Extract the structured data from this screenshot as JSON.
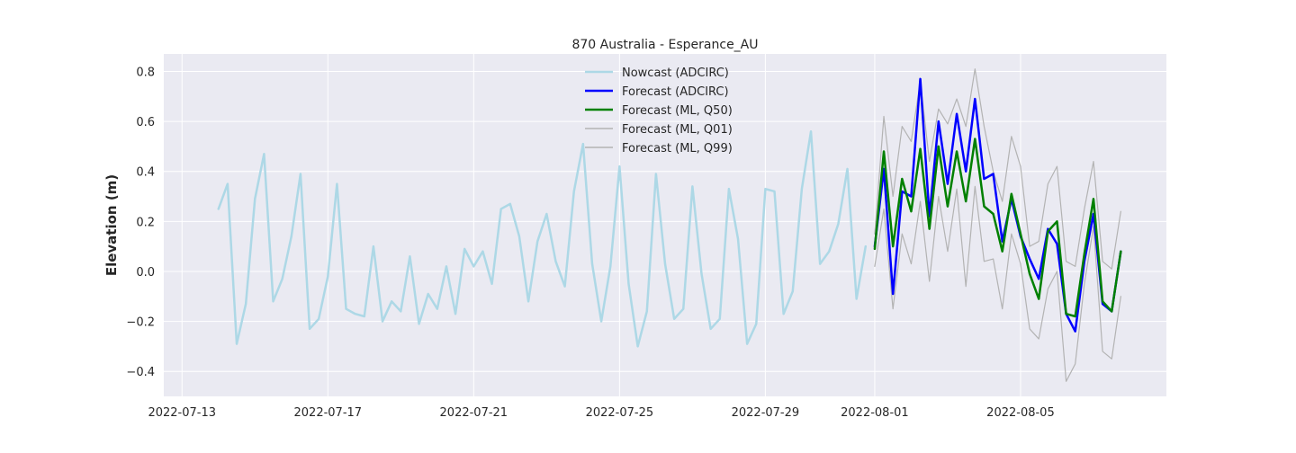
{
  "chart_data": {
    "type": "line",
    "title": "870 Australia - Esperance_AU",
    "xlabel": "",
    "ylabel": "Elevation (m)",
    "x_axis_type": "date",
    "xlim": [
      "2022-07-12 12:00",
      "2022-08-09 00:00"
    ],
    "ylim": [
      -0.5,
      0.87
    ],
    "grid": true,
    "legend_position": "top-center",
    "x_ticks": [
      "2022-07-13",
      "2022-07-17",
      "2022-07-21",
      "2022-07-25",
      "2022-07-29",
      "2022-08-01",
      "2022-08-05"
    ],
    "y_ticks": [
      -0.4,
      -0.2,
      0.0,
      0.2,
      0.4,
      0.6,
      0.8
    ],
    "y_tick_labels": [
      "−0.4",
      "−0.2",
      "0.0",
      "0.2",
      "0.4",
      "0.6",
      "0.8"
    ],
    "series": [
      {
        "name": "Nowcast (ADCIRC)",
        "color": "#add8e6",
        "width": 2.5,
        "x": [
          "2022-07-14 00:00",
          "2022-07-14 06:00",
          "2022-07-14 12:00",
          "2022-07-14 18:00",
          "2022-07-15 00:00",
          "2022-07-15 06:00",
          "2022-07-15 12:00",
          "2022-07-15 18:00",
          "2022-07-16 00:00",
          "2022-07-16 06:00",
          "2022-07-16 12:00",
          "2022-07-16 18:00",
          "2022-07-17 00:00",
          "2022-07-17 06:00",
          "2022-07-17 12:00",
          "2022-07-17 18:00",
          "2022-07-18 00:00",
          "2022-07-18 06:00",
          "2022-07-18 12:00",
          "2022-07-18 18:00",
          "2022-07-19 00:00",
          "2022-07-19 06:00",
          "2022-07-19 12:00",
          "2022-07-19 18:00",
          "2022-07-20 00:00",
          "2022-07-20 06:00",
          "2022-07-20 12:00",
          "2022-07-20 18:00",
          "2022-07-21 00:00",
          "2022-07-21 06:00",
          "2022-07-21 12:00",
          "2022-07-21 18:00",
          "2022-07-22 00:00",
          "2022-07-22 06:00",
          "2022-07-22 12:00",
          "2022-07-22 18:00",
          "2022-07-23 00:00",
          "2022-07-23 06:00",
          "2022-07-23 12:00",
          "2022-07-23 18:00",
          "2022-07-24 00:00",
          "2022-07-24 06:00",
          "2022-07-24 12:00",
          "2022-07-24 18:00",
          "2022-07-25 00:00",
          "2022-07-25 06:00",
          "2022-07-25 12:00",
          "2022-07-25 18:00",
          "2022-07-26 00:00",
          "2022-07-26 06:00",
          "2022-07-26 12:00",
          "2022-07-26 18:00",
          "2022-07-27 00:00",
          "2022-07-27 06:00",
          "2022-07-27 12:00",
          "2022-07-27 18:00",
          "2022-07-28 00:00",
          "2022-07-28 06:00",
          "2022-07-28 12:00",
          "2022-07-28 18:00",
          "2022-07-29 00:00",
          "2022-07-29 06:00",
          "2022-07-29 12:00",
          "2022-07-29 18:00",
          "2022-07-30 00:00",
          "2022-07-30 06:00",
          "2022-07-30 12:00",
          "2022-07-30 18:00",
          "2022-07-31 00:00",
          "2022-07-31 06:00",
          "2022-07-31 12:00",
          "2022-07-31 18:00"
        ],
        "y": [
          0.25,
          0.35,
          -0.29,
          -0.13,
          0.29,
          0.47,
          -0.12,
          -0.03,
          0.14,
          0.39,
          -0.23,
          -0.19,
          -0.02,
          0.35,
          -0.15,
          -0.17,
          -0.18,
          0.1,
          -0.2,
          -0.12,
          -0.16,
          0.06,
          -0.21,
          -0.09,
          -0.15,
          0.02,
          -0.17,
          0.09,
          0.02,
          0.08,
          -0.05,
          0.25,
          0.27,
          0.14,
          -0.12,
          0.12,
          0.23,
          0.04,
          -0.06,
          0.32,
          0.51,
          0.03,
          -0.2,
          0.02,
          0.42,
          -0.05,
          -0.3,
          -0.16,
          0.39,
          0.03,
          -0.19,
          -0.15,
          0.34,
          -0.01,
          -0.23,
          -0.19,
          0.33,
          0.13,
          -0.29,
          -0.21,
          0.33,
          0.32,
          -0.17,
          -0.08,
          0.33,
          0.56,
          0.03,
          0.08,
          0.19,
          0.41,
          -0.11,
          0.1
        ]
      },
      {
        "name": "Forecast (ADCIRC)",
        "color": "#0000ff",
        "width": 2.5,
        "x": [
          "2022-08-01 00:00",
          "2022-08-01 06:00",
          "2022-08-01 12:00",
          "2022-08-01 18:00",
          "2022-08-02 00:00",
          "2022-08-02 06:00",
          "2022-08-02 12:00",
          "2022-08-02 18:00",
          "2022-08-03 00:00",
          "2022-08-03 06:00",
          "2022-08-03 12:00",
          "2022-08-03 18:00",
          "2022-08-04 00:00",
          "2022-08-04 06:00",
          "2022-08-04 12:00",
          "2022-08-04 18:00",
          "2022-08-05 00:00",
          "2022-08-05 06:00",
          "2022-08-05 12:00",
          "2022-08-05 18:00",
          "2022-08-06 00:00",
          "2022-08-06 06:00",
          "2022-08-06 12:00",
          "2022-08-06 18:00",
          "2022-08-07 00:00",
          "2022-08-07 06:00",
          "2022-08-07 12:00",
          "2022-08-07 18:00"
        ],
        "y": [
          0.1,
          0.41,
          -0.09,
          0.32,
          0.3,
          0.77,
          0.22,
          0.6,
          0.35,
          0.63,
          0.4,
          0.69,
          0.37,
          0.39,
          0.12,
          0.29,
          0.14,
          0.05,
          -0.03,
          0.17,
          0.11,
          -0.17,
          -0.24,
          0.04,
          0.23,
          -0.13,
          -0.16,
          0.08
        ]
      },
      {
        "name": "Forecast (ML, Q50)",
        "color": "#008000",
        "width": 2.5,
        "x": [
          "2022-08-01 00:00",
          "2022-08-01 06:00",
          "2022-08-01 12:00",
          "2022-08-01 18:00",
          "2022-08-02 00:00",
          "2022-08-02 06:00",
          "2022-08-02 12:00",
          "2022-08-02 18:00",
          "2022-08-03 00:00",
          "2022-08-03 06:00",
          "2022-08-03 12:00",
          "2022-08-03 18:00",
          "2022-08-04 00:00",
          "2022-08-04 06:00",
          "2022-08-04 12:00",
          "2022-08-04 18:00",
          "2022-08-05 00:00",
          "2022-08-05 06:00",
          "2022-08-05 12:00",
          "2022-08-05 18:00",
          "2022-08-06 00:00",
          "2022-08-06 06:00",
          "2022-08-06 12:00",
          "2022-08-06 18:00",
          "2022-08-07 00:00",
          "2022-08-07 06:00",
          "2022-08-07 12:00",
          "2022-08-07 18:00"
        ],
        "y": [
          0.09,
          0.48,
          0.1,
          0.37,
          0.24,
          0.49,
          0.17,
          0.5,
          0.26,
          0.48,
          0.28,
          0.53,
          0.26,
          0.23,
          0.08,
          0.31,
          0.15,
          -0.01,
          -0.11,
          0.16,
          0.2,
          -0.17,
          -0.18,
          0.07,
          0.29,
          -0.12,
          -0.16,
          0.08
        ]
      },
      {
        "name": "Forecast (ML, Q01)",
        "color": "#b3b3b3",
        "width": 1.2,
        "x": [
          "2022-08-01 00:00",
          "2022-08-01 06:00",
          "2022-08-01 12:00",
          "2022-08-01 18:00",
          "2022-08-02 00:00",
          "2022-08-02 06:00",
          "2022-08-02 12:00",
          "2022-08-02 18:00",
          "2022-08-03 00:00",
          "2022-08-03 06:00",
          "2022-08-03 12:00",
          "2022-08-03 18:00",
          "2022-08-04 00:00",
          "2022-08-04 06:00",
          "2022-08-04 12:00",
          "2022-08-04 18:00",
          "2022-08-05 00:00",
          "2022-08-05 06:00",
          "2022-08-05 12:00",
          "2022-08-05 18:00",
          "2022-08-06 00:00",
          "2022-08-06 06:00",
          "2022-08-06 12:00",
          "2022-08-06 18:00",
          "2022-08-07 00:00",
          "2022-08-07 06:00",
          "2022-08-07 12:00",
          "2022-08-07 18:00"
        ],
        "y": [
          0.02,
          0.25,
          -0.15,
          0.15,
          0.03,
          0.28,
          -0.04,
          0.3,
          0.08,
          0.33,
          -0.06,
          0.34,
          0.04,
          0.05,
          -0.15,
          0.15,
          0.03,
          -0.23,
          -0.27,
          -0.07,
          0.0,
          -0.44,
          -0.37,
          -0.05,
          0.18,
          -0.32,
          -0.35,
          -0.1
        ]
      },
      {
        "name": "Forecast (ML, Q99)",
        "color": "#b3b3b3",
        "width": 1.2,
        "x": [
          "2022-08-01 00:00",
          "2022-08-01 06:00",
          "2022-08-01 12:00",
          "2022-08-01 18:00",
          "2022-08-02 00:00",
          "2022-08-02 06:00",
          "2022-08-02 12:00",
          "2022-08-02 18:00",
          "2022-08-03 00:00",
          "2022-08-03 06:00",
          "2022-08-03 12:00",
          "2022-08-03 18:00",
          "2022-08-04 00:00",
          "2022-08-04 06:00",
          "2022-08-04 12:00",
          "2022-08-04 18:00",
          "2022-08-05 00:00",
          "2022-08-05 06:00",
          "2022-08-05 12:00",
          "2022-08-05 18:00",
          "2022-08-06 00:00",
          "2022-08-06 06:00",
          "2022-08-06 12:00",
          "2022-08-06 18:00",
          "2022-08-07 00:00",
          "2022-08-07 06:00",
          "2022-08-07 12:00",
          "2022-08-07 18:00"
        ],
        "y": [
          0.15,
          0.62,
          0.3,
          0.58,
          0.52,
          0.76,
          0.44,
          0.65,
          0.59,
          0.69,
          0.58,
          0.81,
          0.58,
          0.4,
          0.28,
          0.54,
          0.42,
          0.1,
          0.12,
          0.35,
          0.42,
          0.04,
          0.02,
          0.25,
          0.44,
          0.04,
          0.01,
          0.24
        ]
      }
    ]
  }
}
